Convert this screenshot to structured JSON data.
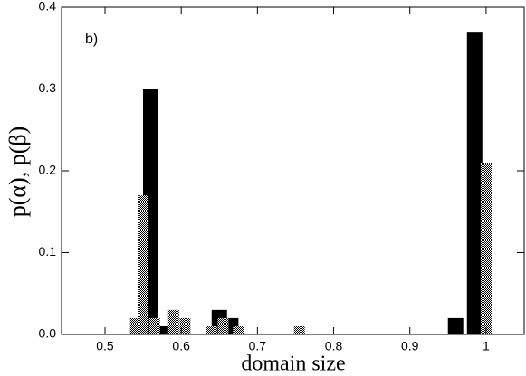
{
  "chart_data": {
    "type": "bar",
    "annotation": "b)",
    "xlabel": "domain size",
    "ylabel": "p(α), p(β)",
    "xlim": [
      0.443,
      1.05
    ],
    "ylim": [
      0,
      0.4
    ],
    "xticks": [
      0.5,
      0.6,
      0.7,
      0.8,
      0.9,
      1
    ],
    "yticks": [
      {
        "value": 0,
        "label": "0.0"
      },
      0.1,
      0.2,
      0.3,
      0.4
    ],
    "series": [
      {
        "color": "#000000",
        "x": [
          0.56,
          0.575,
          0.65,
          0.665,
          0.96,
          0.985
        ],
        "values": [
          0.3,
          0.01,
          0.03,
          0.02,
          0.02,
          0.37
        ]
      },
      {
        "color": "#8c8c8c",
        "x": [
          0.54,
          0.55,
          0.565,
          0.59,
          0.605,
          0.64,
          0.655,
          0.675,
          0.755,
          1.0
        ],
        "values": [
          0.02,
          0.17,
          0.02,
          0.03,
          0.02,
          0.01,
          0.02,
          0.01,
          0.01,
          0.21
        ]
      }
    ]
  }
}
